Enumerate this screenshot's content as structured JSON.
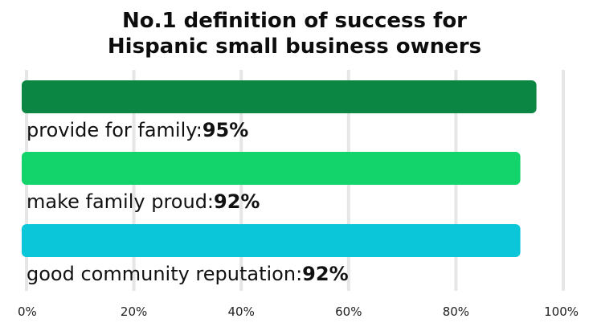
{
  "chart_data": {
    "type": "bar",
    "orientation": "horizontal",
    "title_lines": [
      "No.1 definition of success for",
      "Hispanic small business owners"
    ],
    "categories": [
      "provide for family",
      "make family proud",
      "good community reputation"
    ],
    "values": [
      95,
      92,
      92
    ],
    "value_labels": [
      "95%",
      "92%",
      "92%"
    ],
    "bar_colors": [
      "#0b8743",
      "#12d46a",
      "#0bc5d8"
    ],
    "xlim": [
      0,
      100
    ],
    "x_ticks": [
      0,
      20,
      40,
      60,
      80,
      100
    ],
    "x_tick_labels": [
      "0%",
      "20%",
      "40%",
      "60%",
      "80%",
      "100%"
    ],
    "grid": true,
    "legend": "none"
  }
}
